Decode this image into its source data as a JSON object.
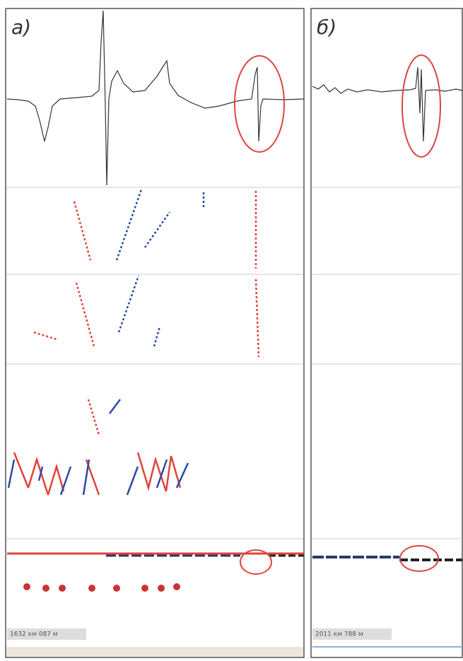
{
  "panels": [
    {
      "label": "а)",
      "status": "1632 км 087 м"
    },
    {
      "label": "б)",
      "status": "2011 км 788 м"
    }
  ]
}
